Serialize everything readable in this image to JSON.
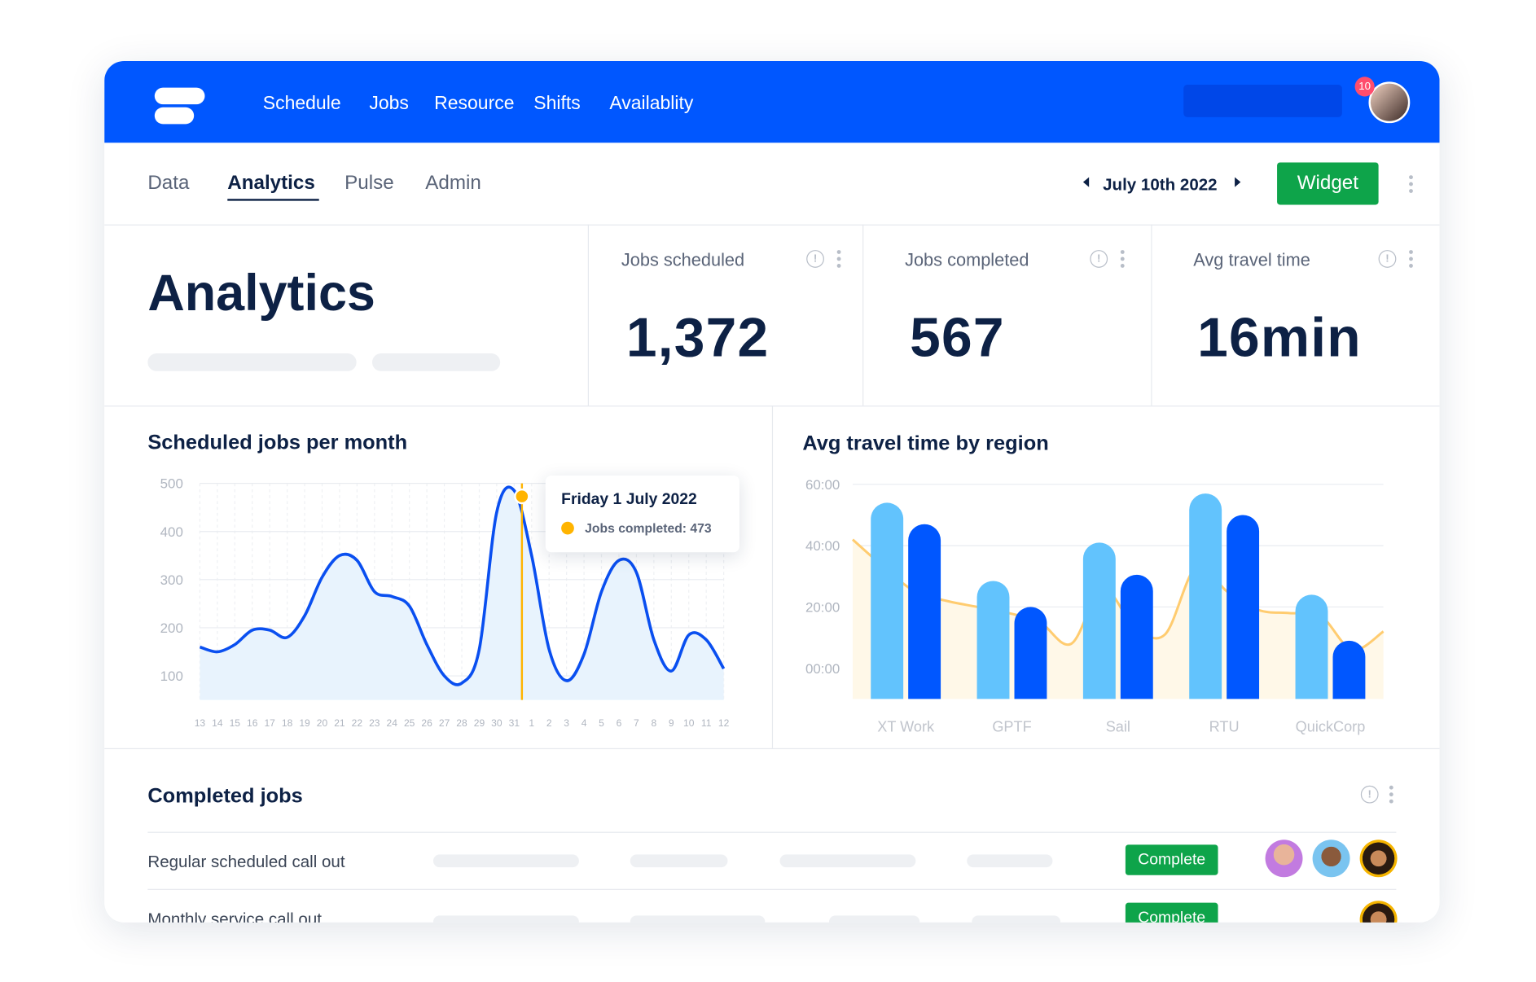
{
  "nav": {
    "items": [
      "Schedule",
      "Jobs",
      "Resource",
      "Shifts",
      "Availablity"
    ],
    "badge": "10"
  },
  "tabs": {
    "items": [
      "Data",
      "Analytics",
      "Pulse",
      "Admin"
    ]
  },
  "date": "July 10th 2022",
  "button": "Widget",
  "header": {
    "title": "Analytics"
  },
  "kpis": [
    {
      "label": "Jobs scheduled",
      "value": "1,372"
    },
    {
      "label": "Jobs completed",
      "value": "567"
    },
    {
      "label": "Avg travel time",
      "value": "16min"
    }
  ],
  "charts": [
    {
      "type": "line",
      "title": "Scheduled jobs per month",
      "categories": [
        "13",
        "14",
        "15",
        "16",
        "17",
        "18",
        "19",
        "20",
        "21",
        "22",
        "23",
        "24",
        "25",
        "26",
        "27",
        "28",
        "29",
        "30",
        "31",
        "1",
        "2",
        "3",
        "4",
        "5",
        "6",
        "7",
        "8",
        "9",
        "10",
        "11",
        "12"
      ],
      "values": [
        160,
        150,
        165,
        195,
        195,
        180,
        225,
        305,
        350,
        340,
        275,
        265,
        245,
        165,
        100,
        85,
        155,
        440,
        485,
        350,
        155,
        90,
        145,
        275,
        340,
        315,
        175,
        110,
        185,
        175,
        115
      ],
      "color": "#0a4ff0",
      "ylim": [
        50,
        500
      ],
      "yticks": [
        100,
        200,
        300,
        400,
        500
      ],
      "grid": true,
      "tooltip": {
        "title": "Friday 1 July 2022",
        "label": "Jobs completed:",
        "value": 473,
        "color": "#ffb400"
      }
    },
    {
      "type": "bar",
      "title": "Avg travel time by region",
      "categories": [
        "XT Work",
        "GPTF",
        "Sail",
        "RTU",
        "QuickCorp"
      ],
      "series": [
        {
          "color": "#62c3fd",
          "values": [
            54,
            28.5,
            41,
            57,
            24
          ]
        },
        {
          "color": "#0057ff",
          "values": [
            47,
            20,
            30.5,
            50,
            9
          ]
        }
      ],
      "trend": {
        "color": "#ffcc70",
        "values": [
          42,
          33,
          25,
          22,
          20,
          18,
          15,
          8,
          26,
          14,
          11,
          33,
          25,
          19,
          18,
          17,
          6,
          12
        ]
      },
      "ylim": [
        -10,
        60
      ],
      "yticks": [
        {
          "value": 0,
          "label": "00:00"
        },
        {
          "value": 20,
          "label": "20:00"
        },
        {
          "value": 40,
          "label": "40:00"
        },
        {
          "value": 60,
          "label": "60:00"
        }
      ],
      "grid": true
    }
  ],
  "table": {
    "title": "Completed jobs",
    "rows": [
      [
        "Regular scheduled call out",
        "Complete"
      ],
      [
        "Monthly service call out",
        "Complete"
      ]
    ]
  }
}
